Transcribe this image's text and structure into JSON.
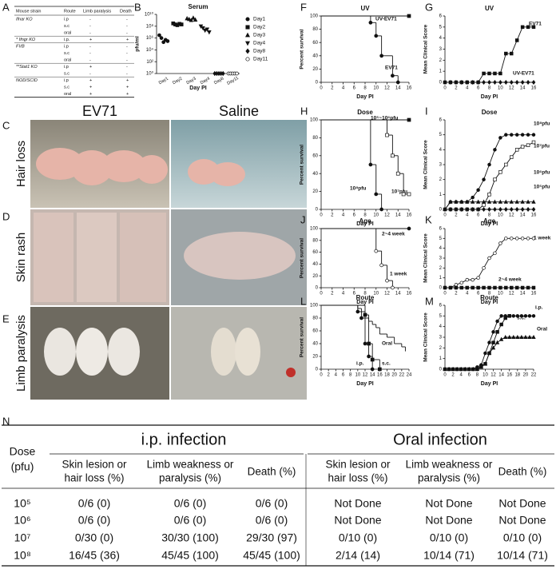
{
  "panel_labels": [
    "A",
    "B",
    "C",
    "D",
    "E",
    "F",
    "G",
    "H",
    "I",
    "J",
    "K",
    "L",
    "M",
    "N"
  ],
  "table_a": {
    "header": [
      "Mouse strain",
      "Route",
      "Limb paralysis",
      "Death"
    ],
    "rows": [
      [
        "Ifnar KO",
        "i.p",
        "-",
        "-"
      ],
      [
        null,
        "s.c",
        "-",
        "-"
      ],
      [
        null,
        "oral",
        "-",
        "-"
      ],
      [
        "* Ifngr KO",
        "i.p.",
        "+",
        "+"
      ],
      [
        "FVB",
        "i.p",
        "-",
        "-"
      ],
      [
        null,
        "s.c",
        "-",
        "-"
      ],
      [
        null,
        "oral",
        "-",
        "-"
      ],
      [
        "**Stat1 KO",
        "i.p",
        "+",
        "-"
      ],
      [
        null,
        "s.c",
        "-",
        "-"
      ],
      [
        "NOD/SCID",
        "i.p",
        "+",
        "+"
      ],
      [
        null,
        "s.c",
        "+",
        "+"
      ],
      [
        null,
        "oral",
        "+",
        "+"
      ]
    ]
  },
  "photos": {
    "columns": [
      "EV71",
      "Saline"
    ],
    "rows": [
      "Hair loss",
      "Skin rash",
      "Limb paralysis"
    ]
  },
  "chart_data": [
    {
      "type": "dotplot",
      "title": "Serum",
      "x_label": "Day PI",
      "y_label": "pfu/ml",
      "log": true,
      "categories": [
        "Day1",
        "Day2",
        "Day3",
        "Day4",
        "Day8",
        "Day11"
      ],
      "groups": [
        {
          "marker": "circle",
          "values": [
            3000000,
            1000000,
            200000,
            500000,
            300000
          ]
        },
        {
          "marker": "square",
          "values": [
            300000000,
            200000000,
            150000000,
            250000000,
            200000000
          ]
        },
        {
          "marker": "triangle",
          "values": [
            2000000000,
            1500000000,
            1000000000,
            2500000000,
            1200000000
          ]
        },
        {
          "marker": "down-triangle",
          "values": [
            100000000,
            50000000,
            20000000,
            30000000,
            10000000
          ]
        },
        {
          "marker": "diamond",
          "values": [
            1,
            1,
            1,
            1,
            1
          ]
        },
        {
          "marker": "open-circle",
          "values": [
            1,
            1,
            1,
            1,
            1
          ]
        }
      ],
      "ylim": [
        1,
        10000000000
      ],
      "yticks": [
        {
          "value": 1,
          "label": "10⁰"
        },
        {
          "value": 100,
          "label": "10²"
        },
        {
          "value": 10000,
          "label": "10⁴"
        },
        {
          "value": 1000000,
          "label": "10⁶"
        },
        {
          "value": 100000000,
          "label": "10⁸"
        },
        {
          "value": 10000000000,
          "label": "10¹⁰"
        }
      ]
    },
    {
      "type": "line",
      "step": true,
      "title": "UV",
      "x_label": "Day PI",
      "y_label": "Percent survival",
      "xlim": [
        0,
        16
      ],
      "xticks": [
        0,
        2,
        4,
        6,
        8,
        10,
        12,
        14,
        16
      ],
      "ylim": [
        0,
        100
      ],
      "yticks": [
        0,
        20,
        40,
        60,
        80,
        100
      ],
      "series": [
        {
          "name": "UV-EV71",
          "marker": "square",
          "x": [
            0,
            16
          ],
          "values": [
            100,
            100
          ]
        },
        {
          "name": "EV71",
          "marker": "circle",
          "x": [
            0,
            9,
            10,
            11,
            13,
            14
          ],
          "values": [
            100,
            90,
            70,
            40,
            10,
            0
          ]
        }
      ]
    },
    {
      "type": "line",
      "title": "UV",
      "x_label": "Day PI",
      "y_label": "Mean Clinical Score",
      "xlim": [
        0,
        16
      ],
      "xticks": [
        0,
        2,
        4,
        6,
        8,
        10,
        12,
        14,
        16
      ],
      "ylim": [
        0,
        6
      ],
      "yticks": [
        0,
        1,
        2,
        3,
        4,
        5,
        6
      ],
      "series": [
        {
          "name": "EV71",
          "marker": "square",
          "x": [
            0,
            1,
            2,
            3,
            4,
            5,
            6,
            7,
            8,
            9,
            10,
            11,
            12,
            13,
            14,
            15,
            16
          ],
          "values": [
            0,
            0,
            0,
            0,
            0,
            0,
            0,
            0.8,
            0.8,
            0.8,
            0.8,
            2.6,
            2.6,
            3.8,
            5,
            5,
            5
          ]
        },
        {
          "name": "UV-EV71",
          "marker": "diamond",
          "x": [
            0,
            1,
            2,
            3,
            4,
            5,
            6,
            7,
            8,
            9,
            10,
            11,
            12,
            13,
            14,
            15,
            16
          ],
          "values": [
            0,
            0,
            0,
            0,
            0,
            0,
            0,
            0,
            0,
            0,
            0,
            0,
            0,
            0,
            0,
            0,
            0
          ]
        }
      ]
    },
    {
      "type": "line",
      "step": true,
      "title": "Dose",
      "x_label": "Day PI",
      "y_label": "Percent survival",
      "xlim": [
        0,
        16
      ],
      "xticks": [
        0,
        2,
        4,
        6,
        8,
        10,
        12,
        14,
        16
      ],
      "ylim": [
        0,
        100
      ],
      "yticks": [
        0,
        20,
        40,
        60,
        80,
        100
      ],
      "series": [
        {
          "name": "10⁵~10⁶pfu",
          "marker": "square",
          "x": [
            0,
            16
          ],
          "values": [
            100,
            100
          ]
        },
        {
          "name": "10⁸pfu",
          "marker": "circle",
          "x": [
            0,
            9,
            10,
            11
          ],
          "values": [
            100,
            50,
            17,
            0
          ]
        },
        {
          "name": "10⁷pfu",
          "marker": "open-square",
          "x": [
            0,
            12,
            13,
            14,
            15,
            16
          ],
          "values": [
            100,
            83,
            60,
            40,
            17,
            17
          ]
        }
      ]
    },
    {
      "type": "line",
      "title": "Dose",
      "x_label": "Day PI",
      "y_label": "Mean Clinical Score",
      "xlim": [
        0,
        16
      ],
      "xticks": [
        0,
        2,
        4,
        6,
        8,
        10,
        12,
        14,
        16
      ],
      "ylim": [
        0,
        6
      ],
      "yticks": [
        0,
        1,
        2,
        3,
        4,
        5,
        6
      ],
      "series": [
        {
          "name": "10⁸pfu",
          "marker": "circle",
          "x": [
            0,
            1,
            2,
            3,
            4,
            5,
            6,
            7,
            8,
            9,
            10,
            11,
            12,
            13,
            14,
            15,
            16
          ],
          "values": [
            0,
            0.5,
            0.5,
            0.5,
            0.5,
            0.8,
            1.3,
            2,
            3,
            4,
            4.8,
            5,
            5,
            5,
            5,
            5,
            5
          ]
        },
        {
          "name": "10⁷pfu",
          "marker": "open-square",
          "x": [
            0,
            1,
            2,
            3,
            4,
            5,
            6,
            7,
            8,
            9,
            10,
            11,
            12,
            13,
            14,
            15,
            16
          ],
          "values": [
            0,
            0,
            0,
            0,
            0,
            0,
            0,
            0.3,
            1,
            2,
            2.5,
            3,
            3.5,
            4,
            4.2,
            4.3,
            4.5
          ]
        },
        {
          "name": "10⁶pfu",
          "marker": "triangle",
          "x": [
            0,
            1,
            2,
            3,
            4,
            5,
            6,
            7,
            8,
            9,
            10,
            11,
            12,
            13,
            14,
            15,
            16
          ],
          "values": [
            0,
            0.5,
            0.5,
            0.5,
            0.5,
            0.5,
            0.5,
            0.5,
            0.5,
            0.5,
            0.5,
            0.5,
            0.5,
            0.5,
            0.5,
            0.5,
            0.5
          ]
        },
        {
          "name": "10⁵pfu",
          "marker": "diamond",
          "x": [
            0,
            1,
            2,
            3,
            4,
            5,
            6,
            7,
            8,
            9,
            10,
            11,
            12,
            13,
            14,
            15,
            16
          ],
          "values": [
            0,
            0,
            0,
            0,
            0,
            0,
            0,
            0,
            0,
            0,
            0,
            0,
            0,
            0,
            0,
            0,
            0
          ]
        }
      ]
    },
    {
      "type": "line",
      "step": true,
      "title": "Age",
      "x_label": "Day PI",
      "y_label": "Percent survival",
      "xlim": [
        0,
        16
      ],
      "xticks": [
        0,
        2,
        4,
        6,
        8,
        10,
        12,
        14,
        16
      ],
      "ylim": [
        0,
        100
      ],
      "yticks": [
        0,
        20,
        40,
        60,
        80,
        100
      ],
      "series": [
        {
          "name": "2~4 week",
          "marker": "circle",
          "x": [
            0,
            16
          ],
          "values": [
            100,
            100
          ]
        },
        {
          "name": "1 week",
          "marker": "open-circle",
          "x": [
            0,
            10,
            11,
            12,
            13
          ],
          "values": [
            100,
            62,
            38,
            12,
            0
          ]
        }
      ]
    },
    {
      "type": "line",
      "title": "Age",
      "x_label": "Day PI",
      "y_label": "Mean Clinical Score",
      "xlim": [
        0,
        16
      ],
      "xticks": [
        0,
        2,
        4,
        6,
        8,
        10,
        12,
        14,
        16
      ],
      "ylim": [
        0,
        6
      ],
      "yticks": [
        0,
        1,
        2,
        3,
        4,
        5,
        6
      ],
      "series": [
        {
          "name": "1 week",
          "marker": "open-circle",
          "x": [
            0,
            1,
            2,
            3,
            4,
            5,
            6,
            7,
            8,
            9,
            10,
            11,
            12,
            13,
            14,
            15,
            16
          ],
          "values": [
            0,
            0,
            0.3,
            0.5,
            0.8,
            0.8,
            1,
            2,
            3,
            3.5,
            4.5,
            5,
            5,
            5,
            5,
            5,
            5
          ]
        },
        {
          "name": "2~4 week",
          "marker": "square",
          "x": [
            0,
            1,
            2,
            3,
            4,
            5,
            6,
            7,
            8,
            9,
            10,
            11,
            12,
            13,
            14,
            15,
            16
          ],
          "values": [
            0,
            0,
            0,
            0,
            0,
            0,
            0,
            0,
            0,
            0,
            0,
            0,
            0,
            0,
            0,
            0,
            0
          ]
        }
      ]
    },
    {
      "type": "line",
      "step": true,
      "title": "Route",
      "x_label": "Day PI",
      "y_label": "Percent survival",
      "xlim": [
        0,
        24
      ],
      "xticks": [
        0,
        2,
        4,
        6,
        8,
        10,
        12,
        14,
        16,
        18,
        20,
        22,
        24
      ],
      "ylim": [
        0,
        100
      ],
      "yticks": [
        0,
        20,
        40,
        60,
        80,
        100
      ],
      "series": [
        {
          "name": "Oral",
          "marker": "none",
          "x": [
            0,
            10,
            11,
            12,
            13,
            14,
            15,
            16,
            18,
            20,
            22,
            23
          ],
          "values": [
            100,
            95,
            90,
            80,
            75,
            70,
            65,
            55,
            50,
            40,
            35,
            28
          ]
        },
        {
          "name": "i.p.",
          "marker": "circle",
          "x": [
            0,
            10,
            11,
            12,
            13,
            14
          ],
          "values": [
            100,
            90,
            80,
            40,
            20,
            0
          ]
        },
        {
          "name": "s.c.",
          "marker": "square",
          "x": [
            0,
            12,
            13,
            14,
            16
          ],
          "values": [
            100,
            85,
            40,
            15,
            0
          ]
        }
      ]
    },
    {
      "type": "line",
      "title": "Route",
      "x_label": "Day PI",
      "y_label": "Mean Clinical Score",
      "xlim": [
        0,
        22
      ],
      "xticks": [
        0,
        2,
        4,
        6,
        8,
        10,
        12,
        14,
        16,
        18,
        20,
        22
      ],
      "ylim": [
        0,
        6
      ],
      "yticks": [
        0,
        1,
        2,
        3,
        4,
        5,
        6
      ],
      "series": [
        {
          "name": "i.p.",
          "marker": "circle",
          "x": [
            0,
            1,
            2,
            3,
            4,
            5,
            6,
            7,
            8,
            9,
            10,
            11,
            12,
            13,
            14,
            15,
            16,
            17,
            18,
            19,
            20,
            21,
            22
          ],
          "values": [
            0,
            0,
            0,
            0,
            0,
            0,
            0,
            0,
            0.2,
            0.4,
            1.5,
            2.5,
            3.5,
            4.5,
            5,
            5,
            5,
            5,
            5,
            5,
            5,
            5,
            5
          ]
        },
        {
          "name": "s.c.",
          "marker": "square",
          "x": [
            0,
            1,
            2,
            3,
            4,
            5,
            6,
            7,
            8,
            9,
            10,
            11,
            12,
            13,
            14,
            15,
            16
          ],
          "values": [
            0,
            0,
            0,
            0,
            0,
            0,
            0,
            0,
            0,
            0.3,
            0.5,
            1.5,
            2.5,
            3.5,
            4.2,
            4.8,
            5
          ]
        },
        {
          "name": "Oral",
          "marker": "triangle",
          "x": [
            0,
            1,
            2,
            3,
            4,
            5,
            6,
            7,
            8,
            9,
            10,
            11,
            12,
            13,
            14,
            15,
            16,
            17,
            18,
            19,
            20,
            21,
            22
          ],
          "values": [
            0,
            0,
            0,
            0,
            0,
            0,
            0,
            0,
            0,
            0.2,
            0.5,
            1.5,
            2,
            2.5,
            2.8,
            3,
            3,
            3,
            3,
            3,
            3,
            3,
            3
          ]
        }
      ]
    }
  ],
  "table_n": {
    "dose_header": [
      "Dose",
      "(pfu)"
    ],
    "groups": [
      "i.p. infection",
      "Oral infection"
    ],
    "columns": [
      [
        "Skin lesion or",
        "hair loss (%)"
      ],
      [
        "Limb weakness or",
        "paralysis (%)"
      ],
      [
        "Death (%)"
      ],
      [
        "Skin lesion or",
        "hair loss (%)"
      ],
      [
        "Limb weakness or",
        "paralysis (%)"
      ],
      [
        "Death (%)"
      ]
    ],
    "rows": [
      {
        "dose": "10⁵",
        "cells": [
          "0/6 (0)",
          "0/6 (0)",
          "0/6 (0)",
          "Not Done",
          "Not Done",
          "Not Done"
        ]
      },
      {
        "dose": "10⁶",
        "cells": [
          "0/6 (0)",
          "0/6 (0)",
          "0/6 (0)",
          "Not Done",
          "Not Done",
          "Not Done"
        ]
      },
      {
        "dose": "10⁷",
        "cells": [
          "0/30 (0)",
          "30/30 (100)",
          "29/30 (97)",
          "0/10 (0)",
          "0/10 (0)",
          "0/10 (0)"
        ]
      },
      {
        "dose": "10⁸",
        "cells": [
          "16/45 (36)",
          "45/45 (100)",
          "45/45 (100)",
          "2/14 (14)",
          "10/14 (71)",
          "10/14 (71)"
        ]
      }
    ]
  }
}
